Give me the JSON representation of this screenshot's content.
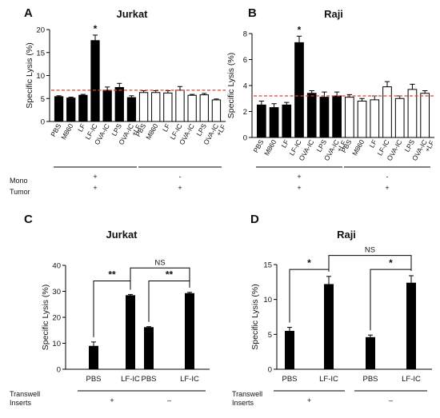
{
  "figure_labels": {
    "mono": "Mono",
    "tumor": "Tumor",
    "transwell_line1": "Transwell",
    "transwell_line2": "Inserts",
    "plus": "+",
    "minus": "-",
    "minus_long": "–"
  },
  "chart_data": [
    {
      "panel": "A",
      "type": "bar",
      "title": "Jurkat",
      "ylabel": "Specific Lysis (%)",
      "ylim": [
        0,
        20
      ],
      "yticks": [
        0,
        5,
        10,
        15,
        20
      ],
      "categories": [
        "PBS",
        "M860",
        "LF",
        "LF-IC",
        "OVA-IC",
        "LPS",
        "OVA-IC +LF",
        "PBS",
        "M860",
        "LF",
        "LF-IC",
        "OVA-IC",
        "LPS",
        "OVA-IC +LF"
      ],
      "category_labels": [
        "PBS",
        "M860",
        "LF",
        "LF-IC",
        "OVA-IC",
        "LPS",
        "OVA-IC",
        "PBS",
        "M860",
        "LF",
        "LF-IC",
        "OVA-IC",
        "LPS",
        "OVA-IC"
      ],
      "category_labels_line2": [
        "",
        "",
        "",
        "",
        "",
        "",
        "+LF",
        "",
        "",
        "",
        "",
        "",
        "",
        "+LF"
      ],
      "values": [
        5.4,
        5.1,
        5.7,
        17.6,
        6.8,
        7.4,
        5.2,
        6.3,
        6.3,
        6.2,
        6.8,
        5.7,
        5.8,
        4.7
      ],
      "errors": [
        0.2,
        0.2,
        0.2,
        1.2,
        0.7,
        0.9,
        0.4,
        0.4,
        0.4,
        0.5,
        0.8,
        0.2,
        0.3,
        0.2
      ],
      "filled": [
        true,
        true,
        true,
        true,
        true,
        true,
        true,
        false,
        false,
        false,
        false,
        false,
        false,
        false
      ],
      "reference_line": 6.8,
      "reference_line_color": "#e0432b",
      "significance": [
        {
          "bar": 3,
          "label": "*"
        }
      ],
      "groups": [
        {
          "start": 0,
          "end": 6,
          "mono": "+",
          "tumor": "+"
        },
        {
          "start": 7,
          "end": 13,
          "mono": "-",
          "tumor": "+"
        }
      ]
    },
    {
      "panel": "B",
      "type": "bar",
      "title": "Raji",
      "ylabel": "Specific Lysis (%)",
      "ylim": [
        0,
        8
      ],
      "yticks": [
        0,
        2,
        4,
        6,
        8
      ],
      "categories": [
        "PBS",
        "M860",
        "LF",
        "LF-IC",
        "OVA-IC",
        "LPS",
        "OVA-IC +LF",
        "PBS",
        "M860",
        "LF",
        "LF-IC",
        "OVA-IC",
        "LPS",
        "OVA-IC +LF"
      ],
      "category_labels": [
        "PBS",
        "M860",
        "LF",
        "LF-IC",
        "OVA-IC",
        "LPS",
        "OVA-IC",
        "PBS",
        "M860",
        "LF",
        "LF-IC",
        "OVA-IC",
        "LPS",
        "OVA-IC"
      ],
      "category_labels_line2": [
        "",
        "",
        "",
        "",
        "",
        "",
        "+LF",
        "",
        "",
        "",
        "",
        "",
        "",
        "+LF"
      ],
      "values": [
        2.5,
        2.3,
        2.5,
        7.3,
        3.4,
        3.1,
        3.2,
        3.1,
        2.8,
        2.9,
        3.9,
        3.0,
        3.7,
        3.4
      ],
      "errors": [
        0.3,
        0.3,
        0.2,
        0.5,
        0.2,
        0.4,
        0.3,
        0.2,
        0.2,
        0.3,
        0.4,
        0.2,
        0.4,
        0.2
      ],
      "filled": [
        true,
        true,
        true,
        true,
        true,
        true,
        true,
        false,
        false,
        false,
        false,
        false,
        false,
        false
      ],
      "reference_line": 3.2,
      "reference_line_color": "#e0432b",
      "significance": [
        {
          "bar": 3,
          "label": "*"
        }
      ],
      "groups": [
        {
          "start": 0,
          "end": 6,
          "mono": "+",
          "tumor": "+"
        },
        {
          "start": 7,
          "end": 13,
          "mono": "-",
          "tumor": "+"
        }
      ]
    },
    {
      "panel": "C",
      "type": "bar",
      "title": "Jurkat",
      "ylabel": "Specific Lysis (%)",
      "ylim": [
        0,
        40
      ],
      "yticks": [
        0,
        10,
        20,
        30,
        40
      ],
      "categories": [
        "PBS",
        "LF-IC",
        "PBS",
        "LF-IC"
      ],
      "values": [
        9.0,
        28.5,
        16.2,
        29.3
      ],
      "errors": [
        1.5,
        0.3,
        0.2,
        0.3
      ],
      "brackets": [
        {
          "from": 0,
          "to": 1,
          "label": "**",
          "value": 34
        },
        {
          "from": 2,
          "to": 3,
          "label": "**",
          "value": 34
        },
        {
          "from": 1,
          "to": 3,
          "label": "NS",
          "value": 39
        }
      ],
      "groups": [
        {
          "start": 0,
          "end": 1,
          "transwell": "+"
        },
        {
          "start": 2,
          "end": 3,
          "transwell": "–"
        }
      ]
    },
    {
      "panel": "D",
      "type": "bar",
      "title": "Raji",
      "ylabel": "Specific Lysis (%)",
      "ylim": [
        0,
        15
      ],
      "yticks": [
        0,
        5,
        10,
        15
      ],
      "categories": [
        "PBS",
        "LF-IC",
        "PBS",
        "LF-IC"
      ],
      "values": [
        5.5,
        12.2,
        4.6,
        12.4
      ],
      "errors": [
        0.5,
        1.1,
        0.3,
        1.0
      ],
      "brackets": [
        {
          "from": 0,
          "to": 1,
          "label": "*",
          "value": 14.3
        },
        {
          "from": 2,
          "to": 3,
          "label": "*",
          "value": 14.3
        },
        {
          "from": 1,
          "to": 3,
          "label": "NS",
          "value": 16.3
        }
      ],
      "groups": [
        {
          "start": 0,
          "end": 1,
          "transwell": "+"
        },
        {
          "start": 2,
          "end": 3,
          "transwell": "–"
        }
      ]
    }
  ]
}
